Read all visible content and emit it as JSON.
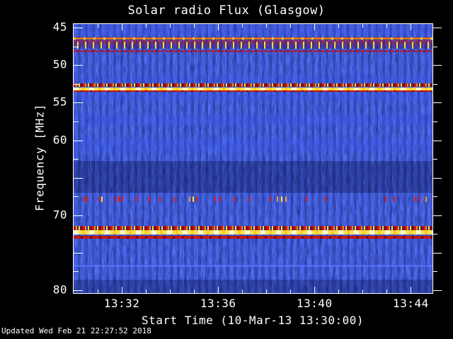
{
  "chart_data": {
    "type": "heatmap",
    "title": "Solar radio Flux (Glasgow)",
    "xlabel": "Start Time (10-Mar-13 13:30:00)",
    "ylabel": "Frequency [MHz]",
    "date": "10-Mar-13",
    "start_time": "13:30:00",
    "x_axis": {
      "start_minute": 0,
      "end_minute": 14.9,
      "minor_step_min": 1,
      "major_ticks": [
        {
          "minute": 2,
          "label": "13:32"
        },
        {
          "minute": 6,
          "label": "13:36"
        },
        {
          "minute": 10,
          "label": "13:40"
        },
        {
          "minute": 14,
          "label": "13:44"
        }
      ]
    },
    "y_axis": {
      "min_mhz": 44.5,
      "max_mhz": 80.4,
      "minor_step": 2.5,
      "major_step": 5,
      "labeled_ticks": [
        45,
        50,
        55,
        60,
        70,
        80
      ]
    },
    "palette": {
      "page_background": "#000000",
      "axis": "#ffffff",
      "base_blue": "#000070",
      "noise_blue": "#2233cc",
      "red": "#e01818",
      "orange": "#ff9a22",
      "yellow": "#ffe24a",
      "white_hot": "#fffdf0"
    },
    "bands": [
      {
        "freq_mhz": 44.6,
        "width_mhz": 1.4,
        "kind": "faint",
        "alpha": 0.3,
        "note": "bright noisy strip below top edge"
      },
      {
        "freq_mhz": 46.28,
        "width_mhz": 0.32,
        "kind": "orange-line",
        "note": "continuous orange interference line"
      },
      {
        "freq_mhz": 46.66,
        "width_mhz": 0.16,
        "kind": "red-dotted"
      },
      {
        "freq_mhz": 46.86,
        "width_mhz": 0.95,
        "kind": "yellow-blips",
        "note": "periodic yellow bursts ~47.3 MHz"
      },
      {
        "freq_mhz": 47.95,
        "width_mhz": 0.32,
        "kind": "red-dotted"
      },
      {
        "freq_mhz": 51.25,
        "width_mhz": 1.15,
        "kind": "faint",
        "alpha": 0.2
      },
      {
        "freq_mhz": 52.45,
        "width_mhz": 0.48,
        "kind": "speckle",
        "note": "top fringe of 53 MHz band"
      },
      {
        "freq_mhz": 52.93,
        "width_mhz": 0.42,
        "kind": "hot-core",
        "note": "bright yellow-white 53 MHz line"
      },
      {
        "freq_mhz": 53.35,
        "width_mhz": 0.22,
        "kind": "red-line"
      },
      {
        "freq_mhz": 53.85,
        "width_mhz": 0.9,
        "kind": "faint",
        "alpha": 0.3
      },
      {
        "freq_mhz": 56.6,
        "width_mhz": 1.5,
        "kind": "faint",
        "alpha": 0.26
      },
      {
        "freq_mhz": 59.7,
        "width_mhz": 1.75,
        "kind": "faint",
        "alpha": 0.3
      },
      {
        "freq_mhz": 62.8,
        "width_mhz": 4.2,
        "kind": "dark",
        "alpha": 0.3
      },
      {
        "freq_mhz": 71.45,
        "width_mhz": 0.55,
        "kind": "speckle",
        "note": "top fringe of 72 MHz band"
      },
      {
        "freq_mhz": 72.0,
        "width_mhz": 0.55,
        "kind": "hot-core",
        "note": "bright yellow-white 72 MHz line"
      },
      {
        "freq_mhz": 72.76,
        "width_mhz": 0.4,
        "kind": "red-line"
      },
      {
        "freq_mhz": 76.6,
        "width_mhz": 0.35,
        "kind": "blue-line"
      },
      {
        "freq_mhz": 78.6,
        "width_mhz": 1.8,
        "kind": "dark",
        "alpha": 0.28
      }
    ],
    "bursts": {
      "freq_mhz": 67.45,
      "height_mhz": 0.8,
      "note": "sporadic short bursts near 67.8 MHz",
      "events": [
        {
          "x": 0.028,
          "c": "red"
        },
        {
          "x": 0.036,
          "c": "red"
        },
        {
          "x": 0.071,
          "c": "red"
        },
        {
          "x": 0.077,
          "c": "yellow"
        },
        {
          "x": 0.116,
          "c": "red"
        },
        {
          "x": 0.124,
          "c": "red"
        },
        {
          "x": 0.134,
          "c": "red"
        },
        {
          "x": 0.176,
          "c": "red"
        },
        {
          "x": 0.209,
          "c": "red"
        },
        {
          "x": 0.239,
          "c": "red"
        },
        {
          "x": 0.282,
          "c": "red"
        },
        {
          "x": 0.322,
          "c": "orange"
        },
        {
          "x": 0.331,
          "c": "yellow"
        },
        {
          "x": 0.341,
          "c": "red"
        },
        {
          "x": 0.392,
          "c": "red"
        },
        {
          "x": 0.406,
          "c": "red"
        },
        {
          "x": 0.446,
          "c": "red"
        },
        {
          "x": 0.489,
          "c": "red"
        },
        {
          "x": 0.546,
          "c": "red"
        },
        {
          "x": 0.566,
          "c": "orange"
        },
        {
          "x": 0.578,
          "c": "yellow"
        },
        {
          "x": 0.59,
          "c": "orange"
        },
        {
          "x": 0.649,
          "c": "red"
        },
        {
          "x": 0.7,
          "c": "red"
        },
        {
          "x": 0.868,
          "c": "red"
        },
        {
          "x": 0.891,
          "c": "red"
        },
        {
          "x": 0.951,
          "c": "red"
        },
        {
          "x": 0.962,
          "c": "red"
        },
        {
          "x": 0.98,
          "c": "orange"
        }
      ]
    }
  },
  "footer": {
    "updated": "Updated Wed Feb 21 22:27:52 2018"
  }
}
